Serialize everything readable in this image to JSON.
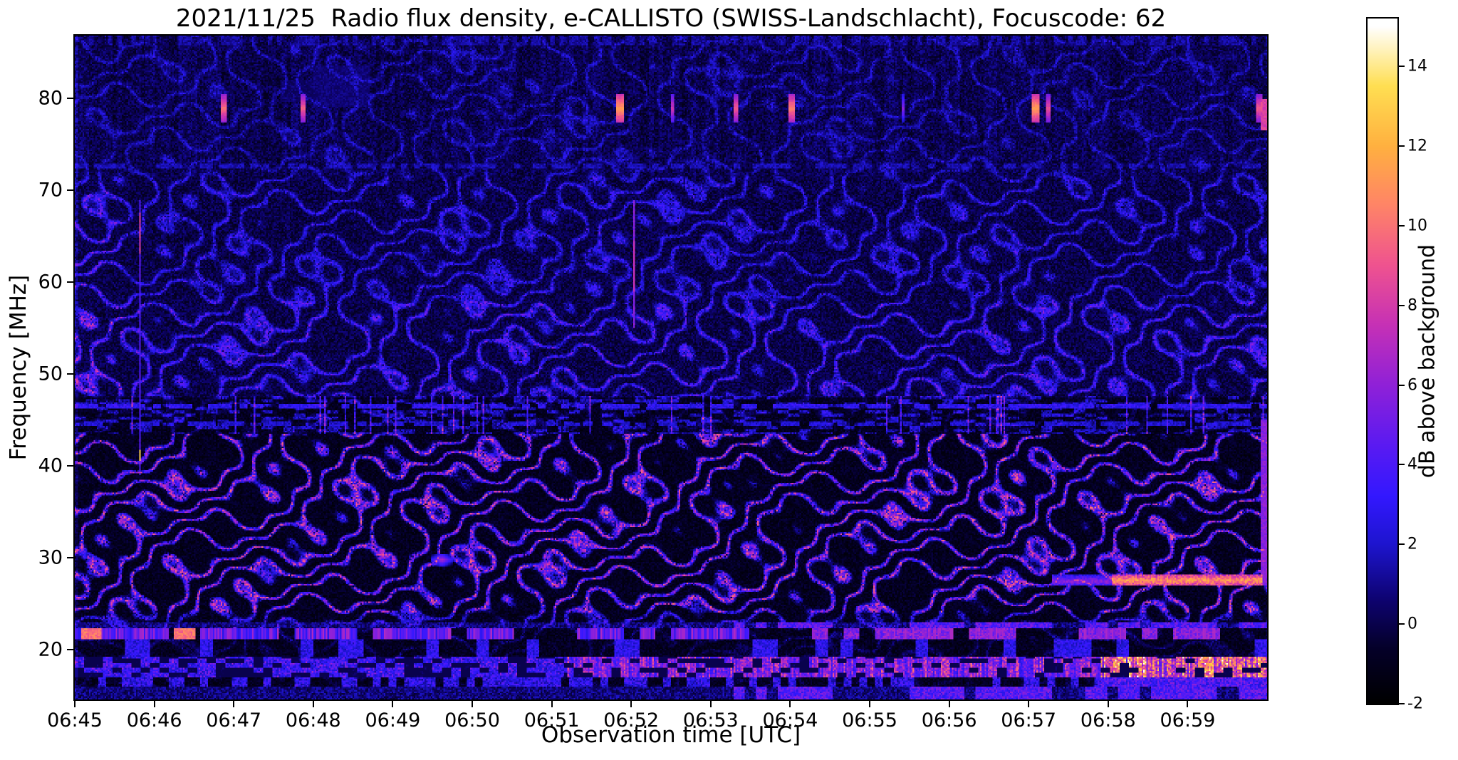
{
  "chart_data": {
    "type": "heatmap",
    "title": "2021/11/25  Radio flux density, e-CALLISTO (SWISS-Landschlacht), Focuscode: 62",
    "date": "2021/11/25",
    "station": "SWISS-Landschlacht",
    "focuscode": 62,
    "xlabel": "Observation time [UTC]",
    "ylabel": "Frequency [MHz]",
    "colorbar_label": "dB above background",
    "x_tick_labels": [
      "06:45",
      "06:46",
      "06:47",
      "06:48",
      "06:49",
      "06:50",
      "06:51",
      "06:52",
      "06:53",
      "06:54",
      "06:55",
      "06:56",
      "06:57",
      "06:58",
      "06:59"
    ],
    "x_range": {
      "start_utc": "06:45",
      "end_utc": "07:00",
      "duration_s": 900
    },
    "y_ticks_mhz": [
      20,
      30,
      40,
      50,
      60,
      70,
      80
    ],
    "y_range_mhz": [
      14.6,
      86.8
    ],
    "colorbar_ticks_db": [
      -2,
      0,
      2,
      4,
      6,
      8,
      10,
      12,
      14
    ],
    "colorbar_range_db": [
      -2,
      15.2
    ],
    "grid": false,
    "legend": "none",
    "colormap_stops": [
      [
        -2.0,
        "#000000"
      ],
      [
        -0.6,
        "#05012a"
      ],
      [
        0.6,
        "#0e0370"
      ],
      [
        2.0,
        "#1e15cf"
      ],
      [
        3.2,
        "#3318ff"
      ],
      [
        4.5,
        "#5b1bf2"
      ],
      [
        6.0,
        "#9021d8"
      ],
      [
        7.5,
        "#c631b6"
      ],
      [
        9.0,
        "#ef5390"
      ],
      [
        10.5,
        "#ff8468"
      ],
      [
        12.0,
        "#ffb140"
      ],
      [
        13.5,
        "#ffdf52"
      ],
      [
        15.0,
        "#ffffff"
      ]
    ],
    "features": {
      "description": "Diagonal drifting interference ripple pattern; bright pink/magenta ripples 20-43 MHz, fainter blue ripples above 47 MHz, speckled horizontal band 43.5-47.5 MHz, bright horizontal RFI bands 15-22 MHz strongest after 06:52, yellow-orange streak near 27.5 MHz after 06:58, short bright bursts near 78-80 MHz",
      "ripple": {
        "wavelength_mhz": 2.6,
        "drift_s_per_cycle": 46
      },
      "bursts_78_80mhz": [
        {
          "t_min": 1.87,
          "w_min": 0.035,
          "amp": 9.5
        },
        {
          "t_min": 2.87,
          "w_min": 0.035,
          "amp": 9.0
        },
        {
          "t_min": 6.86,
          "w_min": 0.045,
          "amp": 11.0
        },
        {
          "t_min": 7.52,
          "w_min": 0.025,
          "amp": 7.5
        },
        {
          "t_min": 8.32,
          "w_min": 0.03,
          "amp": 9.0
        },
        {
          "t_min": 9.02,
          "w_min": 0.035,
          "amp": 10.0
        },
        {
          "t_min": 10.42,
          "w_min": 0.02,
          "amp": 5.5
        },
        {
          "t_min": 12.08,
          "w_min": 0.05,
          "amp": 11.0
        },
        {
          "t_min": 12.25,
          "w_min": 0.03,
          "amp": 8.5
        },
        {
          "t_min": 14.9,
          "w_min": 0.035,
          "amp": 9.0
        }
      ],
      "vertical_events": [
        {
          "t_min": 0.82,
          "w_min": 0.017,
          "f0": 39.0,
          "f1": 69.0,
          "amp": 3.5,
          "hot": [
            40.6,
            41.8,
            13.0
          ]
        },
        {
          "t_min": 0.82,
          "w_min": 0.017,
          "f0": 63.0,
          "f1": 67.5,
          "amp": 7.5
        },
        {
          "t_min": 7.04,
          "w_min": 0.013,
          "f0": 55.0,
          "f1": 69.0,
          "amp": 5.0,
          "hot": [
            59.0,
            64.5,
            7.5
          ]
        },
        {
          "t_min": 14.97,
          "w_min": 0.05,
          "f0": 27.0,
          "f1": 45.0,
          "amp": 5.0
        },
        {
          "t_min": 14.97,
          "w_min": 0.05,
          "f0": 76.5,
          "f1": 80.0,
          "amp": 7.5
        }
      ],
      "streak_27_5mhz": {
        "t_min_start": 13.05,
        "t_min_end": 14.95,
        "f_mhz": 27.55,
        "amp": 12
      },
      "blob": {
        "t_min": 4.62,
        "f_mhz": 29.8,
        "amp": 7
      }
    }
  }
}
